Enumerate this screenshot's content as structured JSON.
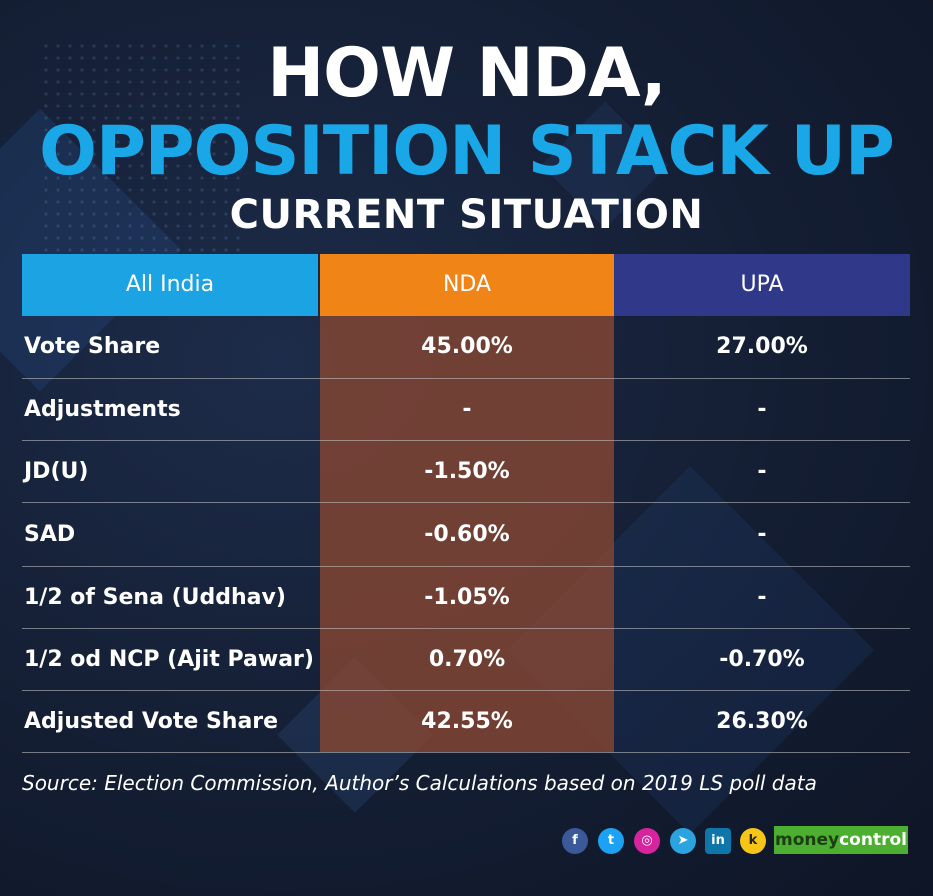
{
  "title": {
    "line1": "HOW NDA,",
    "line2": "OPPOSITION STACK UP",
    "line3": "CURRENT SITUATION"
  },
  "table": {
    "headers": [
      "All India",
      "NDA",
      "UPA"
    ],
    "rows": [
      {
        "label": "Vote Share",
        "nda": "45.00%",
        "upa": "27.00%"
      },
      {
        "label": "Adjustments",
        "nda": "-",
        "upa": "-"
      },
      {
        "label": "JD(U)",
        "nda": "-1.50%",
        "upa": "-"
      },
      {
        "label": "SAD",
        "nda": "-0.60%",
        "upa": "-"
      },
      {
        "label": "1/2 of Sena (Uddhav)",
        "nda": "-1.05%",
        "upa": "-"
      },
      {
        "label": "1/2 od NCP (Ajit Pawar)",
        "nda": "0.70%",
        "upa": "-0.70%"
      },
      {
        "label": "Adjusted Vote Share",
        "nda": "42.55%",
        "upa": "26.30%"
      }
    ]
  },
  "source": "Source: Election Commission, Author’s Calculations based on 2019 LS poll data",
  "social": {
    "facebook": "f",
    "twitter": "t",
    "instagram": "◎",
    "telegram": "➤",
    "linkedin": "in",
    "koo": "k"
  },
  "brand": {
    "part1": "money",
    "part2": "control"
  },
  "colors": {
    "all_india_header": "#1ba3e3",
    "nda_header": "#f08417",
    "upa_header": "#2f3889",
    "title_accent": "#1aa7e8"
  }
}
